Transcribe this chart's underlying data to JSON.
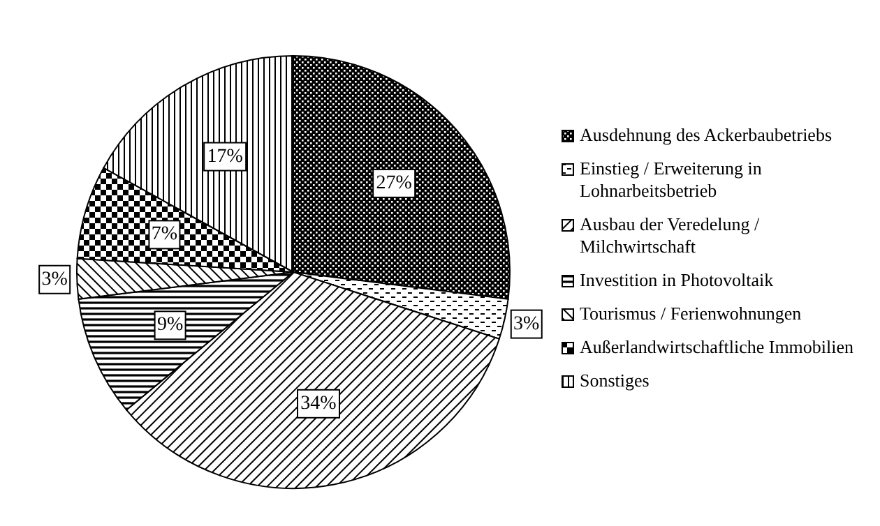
{
  "chart_data": {
    "type": "pie",
    "categories": [
      "Ausdehnung des Ackerbaubetriebs",
      "Einstieg / Erweiterung in Lohnarbeitsbetrieb",
      "Ausbau der Veredelung / Milchwirtschaft",
      "Investition in Photovoltaik",
      "Tourismus / Ferienwohnungen",
      "Außerlandwirtschaftliche Immobilien",
      "Sonstiges"
    ],
    "values": [
      27,
      3,
      34,
      9,
      3,
      7,
      17
    ],
    "value_labels": [
      "27%",
      "3%",
      "34%",
      "9%",
      "3%",
      "7%",
      "17%"
    ],
    "colors": [
      "#000000",
      "#000000",
      "#000000",
      "#000000",
      "#000000",
      "#000000",
      "#000000"
    ],
    "legend": "right"
  }
}
